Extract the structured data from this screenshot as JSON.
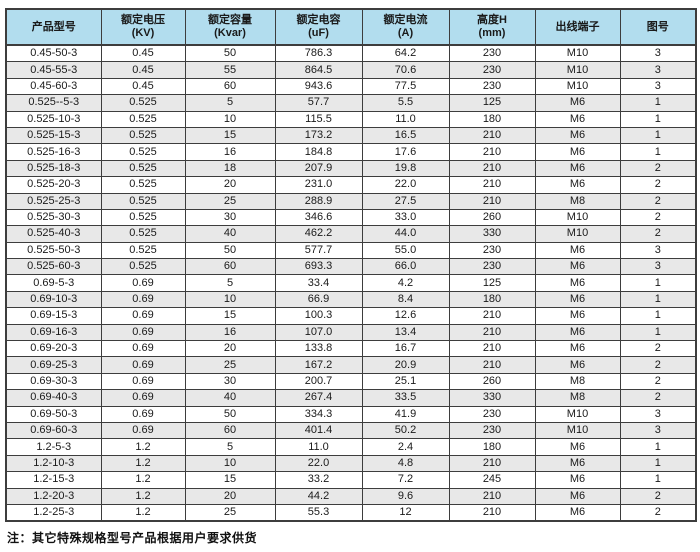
{
  "colors": {
    "header_bg": "#b2ddee",
    "stripe_bg": "#e8e8e8",
    "border": "#3d3d3d",
    "text": "#1a1a1a"
  },
  "note": "注：其它特殊规格型号产品根据用户要求供货",
  "table": {
    "columns": [
      {
        "label": "产品型号",
        "unit": ""
      },
      {
        "label": "额定电压",
        "unit": "(KV)"
      },
      {
        "label": "额定容量",
        "unit": "(Kvar)"
      },
      {
        "label": "额定电容",
        "unit": "(uF)"
      },
      {
        "label": "额定电流",
        "unit": "(A)"
      },
      {
        "label": "高度H",
        "unit": "(mm)"
      },
      {
        "label": "出线端子",
        "unit": ""
      },
      {
        "label": "图号",
        "unit": ""
      }
    ],
    "rows": [
      [
        "0.45-50-3",
        "0.45",
        "50",
        "786.3",
        "64.2",
        "230",
        "M10",
        "3"
      ],
      [
        "0.45-55-3",
        "0.45",
        "55",
        "864.5",
        "70.6",
        "230",
        "M10",
        "3"
      ],
      [
        "0.45-60-3",
        "0.45",
        "60",
        "943.6",
        "77.5",
        "230",
        "M10",
        "3"
      ],
      [
        "0.525--5-3",
        "0.525",
        "5",
        "57.7",
        "5.5",
        "125",
        "M6",
        "1"
      ],
      [
        "0.525-10-3",
        "0.525",
        "10",
        "115.5",
        "11.0",
        "180",
        "M6",
        "1"
      ],
      [
        "0.525-15-3",
        "0.525",
        "15",
        "173.2",
        "16.5",
        "210",
        "M6",
        "1"
      ],
      [
        "0.525-16-3",
        "0.525",
        "16",
        "184.8",
        "17.6",
        "210",
        "M6",
        "1"
      ],
      [
        "0.525-18-3",
        "0.525",
        "18",
        "207.9",
        "19.8",
        "210",
        "M6",
        "2"
      ],
      [
        "0.525-20-3",
        "0.525",
        "20",
        "231.0",
        "22.0",
        "210",
        "M6",
        "2"
      ],
      [
        "0.525-25-3",
        "0.525",
        "25",
        "288.9",
        "27.5",
        "210",
        "M8",
        "2"
      ],
      [
        "0.525-30-3",
        "0.525",
        "30",
        "346.6",
        "33.0",
        "260",
        "M10",
        "2"
      ],
      [
        "0.525-40-3",
        "0.525",
        "40",
        "462.2",
        "44.0",
        "330",
        "M10",
        "2"
      ],
      [
        "0.525-50-3",
        "0.525",
        "50",
        "577.7",
        "55.0",
        "230",
        "M6",
        "3"
      ],
      [
        "0.525-60-3",
        "0.525",
        "60",
        "693.3",
        "66.0",
        "230",
        "M6",
        "3"
      ],
      [
        "0.69-5-3",
        "0.69",
        "5",
        "33.4",
        "4.2",
        "125",
        "M6",
        "1"
      ],
      [
        "0.69-10-3",
        "0.69",
        "10",
        "66.9",
        "8.4",
        "180",
        "M6",
        "1"
      ],
      [
        "0.69-15-3",
        "0.69",
        "15",
        "100.3",
        "12.6",
        "210",
        "M6",
        "1"
      ],
      [
        "0.69-16-3",
        "0.69",
        "16",
        "107.0",
        "13.4",
        "210",
        "M6",
        "1"
      ],
      [
        "0.69-20-3",
        "0.69",
        "20",
        "133.8",
        "16.7",
        "210",
        "M6",
        "2"
      ],
      [
        "0.69-25-3",
        "0.69",
        "25",
        "167.2",
        "20.9",
        "210",
        "M6",
        "2"
      ],
      [
        "0.69-30-3",
        "0.69",
        "30",
        "200.7",
        "25.1",
        "260",
        "M8",
        "2"
      ],
      [
        "0.69-40-3",
        "0.69",
        "40",
        "267.4",
        "33.5",
        "330",
        "M8",
        "2"
      ],
      [
        "0.69-50-3",
        "0.69",
        "50",
        "334.3",
        "41.9",
        "230",
        "M10",
        "3"
      ],
      [
        "0.69-60-3",
        "0.69",
        "60",
        "401.4",
        "50.2",
        "230",
        "M10",
        "3"
      ],
      [
        "1.2-5-3",
        "1.2",
        "5",
        "11.0",
        "2.4",
        "180",
        "M6",
        "1"
      ],
      [
        "1.2-10-3",
        "1.2",
        "10",
        "22.0",
        "4.8",
        "210",
        "M6",
        "1"
      ],
      [
        "1.2-15-3",
        "1.2",
        "15",
        "33.2",
        "7.2",
        "245",
        "M6",
        "1"
      ],
      [
        "1.2-20-3",
        "1.2",
        "20",
        "44.2",
        "9.6",
        "210",
        "M6",
        "2"
      ],
      [
        "1.2-25-3",
        "1.2",
        "25",
        "55.3",
        "12",
        "210",
        "M6",
        "2"
      ]
    ]
  }
}
